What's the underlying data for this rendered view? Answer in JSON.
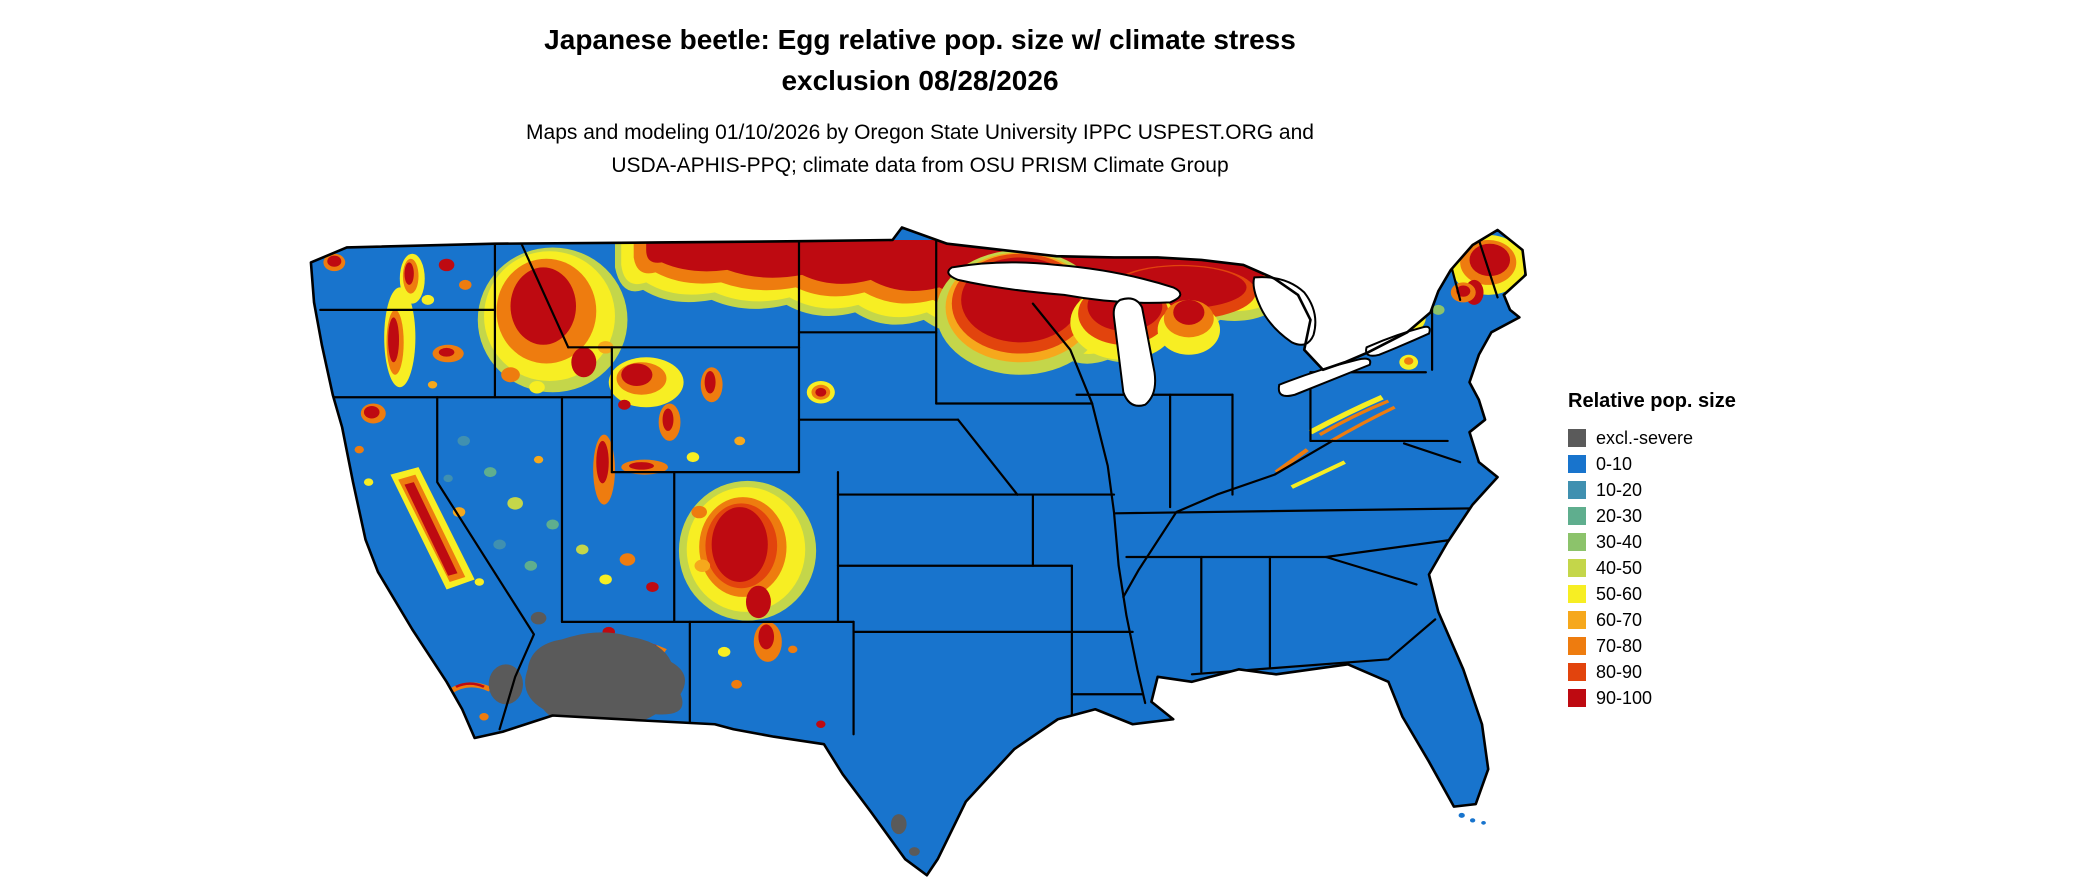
{
  "title": {
    "line1": "Japanese beetle: Egg relative pop. size w/ climate stress",
    "line2": "exclusion 08/28/2026"
  },
  "subtitle": {
    "line1": "Maps and modeling 01/10/2026 by Oregon State University IPPC USPEST.ORG and",
    "line2": "USDA-APHIS-PPQ; climate data from OSU PRISM Climate Group"
  },
  "map": {
    "base_color": "#1874CD",
    "boundary_color": "#000000",
    "water_color": "#FFFFFF"
  },
  "legend": {
    "title": "Relative pop. size",
    "items": [
      {
        "label": "excl.-severe",
        "color": "#5A5A5A"
      },
      {
        "label": "0-10",
        "color": "#1874CD"
      },
      {
        "label": "10-20",
        "color": "#4090B0"
      },
      {
        "label": "20-30",
        "color": "#5FAE8E"
      },
      {
        "label": "30-40",
        "color": "#8CC36B"
      },
      {
        "label": "40-50",
        "color": "#C4D64A"
      },
      {
        "label": "50-60",
        "color": "#F7EE23"
      },
      {
        "label": "60-70",
        "color": "#F6A81C"
      },
      {
        "label": "70-80",
        "color": "#EE7C0F"
      },
      {
        "label": "80-90",
        "color": "#E2440D"
      },
      {
        "label": "90-100",
        "color": "#BE0A11"
      }
    ]
  }
}
